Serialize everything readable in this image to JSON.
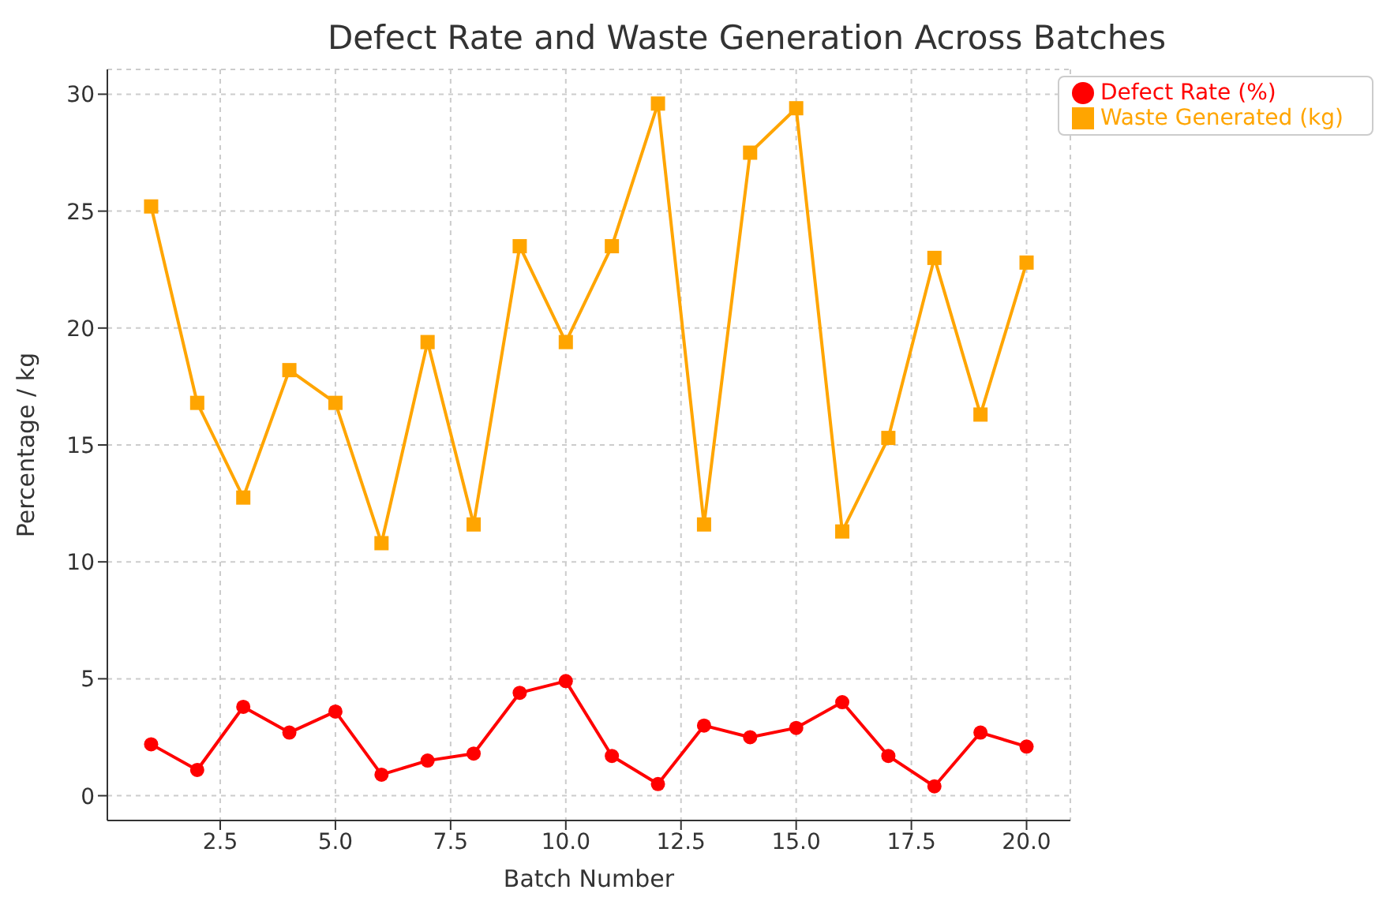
{
  "chart_data": {
    "type": "line",
    "title": "Defect Rate and Waste Generation Across Batches",
    "xlabel": "Batch Number",
    "ylabel": "Percentage / kg",
    "x": [
      1,
      2,
      3,
      4,
      5,
      6,
      7,
      8,
      9,
      10,
      11,
      12,
      13,
      14,
      15,
      16,
      17,
      18,
      19,
      20
    ],
    "series": [
      {
        "name": "Defect Rate (%)",
        "color": "#ff0000",
        "marker": "circle",
        "values": [
          2.2,
          1.1,
          3.8,
          2.7,
          3.6,
          0.9,
          1.5,
          1.8,
          4.4,
          4.9,
          1.7,
          0.5,
          3.0,
          2.5,
          2.9,
          4.0,
          1.7,
          0.4,
          2.7,
          2.1
        ]
      },
      {
        "name": "Waste Generated (kg)",
        "color": "#ffa500",
        "marker": "square",
        "values": [
          25.2,
          16.8,
          12.75,
          18.2,
          16.8,
          10.8,
          19.4,
          11.6,
          23.5,
          19.4,
          23.5,
          29.6,
          11.6,
          27.5,
          29.4,
          11.3,
          15.3,
          23.0,
          16.3,
          22.8
        ]
      }
    ],
    "xlim": [
      0.05,
      20.95
    ],
    "xticks": [
      {
        "value": 2.5,
        "label": "2.5"
      },
      {
        "value": 5,
        "label": "5.0"
      },
      {
        "value": 7.5,
        "label": "7.5"
      },
      {
        "value": 10,
        "label": "10.0"
      },
      {
        "value": 12.5,
        "label": "12.5"
      },
      {
        "value": 15,
        "label": "15.0"
      },
      {
        "value": 17.5,
        "label": "17.5"
      },
      {
        "value": 20,
        "label": "20.0"
      }
    ],
    "ylim": [
      -1.06,
      31.06
    ],
    "yticks": [
      0,
      5,
      10,
      15,
      20,
      25,
      30
    ],
    "grid": true,
    "legend": "top right",
    "line_style": "solid"
  }
}
